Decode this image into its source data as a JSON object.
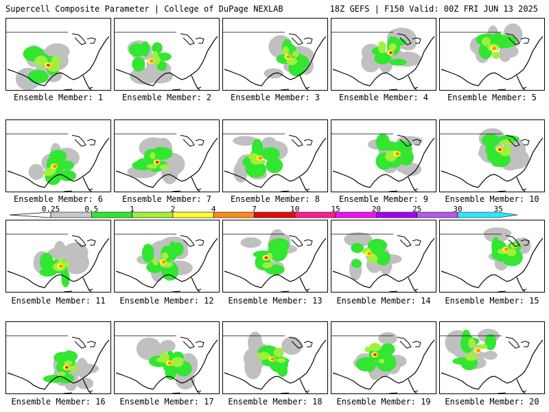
{
  "header": {
    "left": "Supercell Composite Parameter | College of DuPage NEXLAB",
    "right": "18Z GEFS | F150 Valid: 00Z FRI JUN 13 2025"
  },
  "members": [
    {
      "label": "Ensemble Member: 1"
    },
    {
      "label": "Ensemble Member: 2"
    },
    {
      "label": "Ensemble Member: 3"
    },
    {
      "label": "Ensemble Member: 4"
    },
    {
      "label": "Ensemble Member: 5"
    },
    {
      "label": "Ensemble Member: 6"
    },
    {
      "label": "Ensemble Member: 7"
    },
    {
      "label": "Ensemble Member: 8"
    },
    {
      "label": "Ensemble Member: 9"
    },
    {
      "label": "Ensemble Member: 10"
    },
    {
      "label": "Ensemble Member: 11"
    },
    {
      "label": "Ensemble Member: 12"
    },
    {
      "label": "Ensemble Member: 13"
    },
    {
      "label": "Ensemble Member: 14"
    },
    {
      "label": "Ensemble Member: 15"
    },
    {
      "label": "Ensemble Member: 16"
    },
    {
      "label": "Ensemble Member: 17"
    },
    {
      "label": "Ensemble Member: 18"
    },
    {
      "label": "Ensemble Member: 19"
    },
    {
      "label": "Ensemble Member: 20"
    }
  ],
  "legend": {
    "ticks": [
      "0.25",
      "0.5",
      "1",
      "2",
      "4",
      "7",
      "10",
      "15",
      "20",
      "25",
      "30",
      "35"
    ],
    "colors": [
      "#c8c8c8",
      "#32e632",
      "#a0f03c",
      "#ffff32",
      "#ff8c1e",
      "#e60a0a",
      "#ff1e8c",
      "#f50ff5",
      "#a000f5",
      "#b45ae6",
      "#2de6f5"
    ]
  },
  "palette": {
    "gray": "#c0c0c0",
    "green": "#32e632",
    "lime": "#a0f03c",
    "yellow": "#ffff32",
    "orange": "#ff8c1e",
    "red": "#e60a0a"
  }
}
